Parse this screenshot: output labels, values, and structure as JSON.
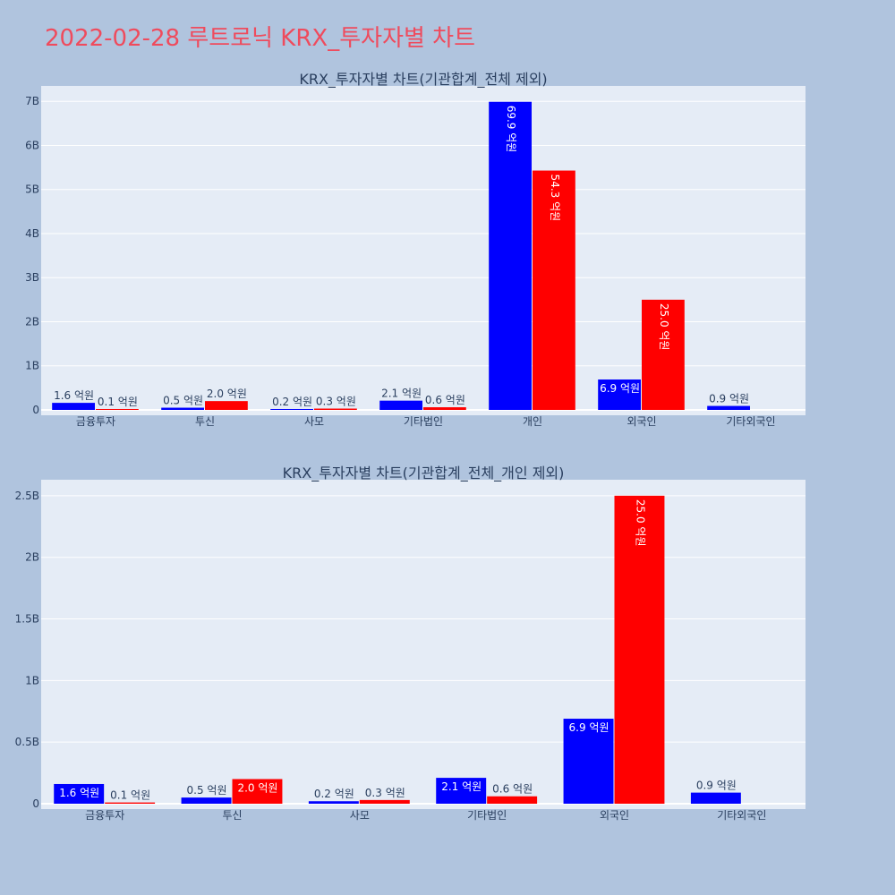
{
  "page": {
    "title": "2022-02-28 루트로닉 KRX_투자자별 차트"
  },
  "colors": {
    "background": "#b0c4de",
    "plot_bg": "#e5ecf6",
    "grid": "#ffffff",
    "title": "#ef4b5d",
    "text": "#2a3f5f",
    "series_a": "#0000ff",
    "series_b": "#ff0000"
  },
  "chart_data": [
    {
      "type": "bar",
      "title": "KRX_투자자별 차트(기관합계_전체 제외)",
      "categories": [
        "금융투자",
        "투신",
        "사모",
        "기타법인",
        "개인",
        "외국인",
        "기타외국인"
      ],
      "series": [
        {
          "color": "#0000ff",
          "values": [
            160000000,
            50000000,
            20000000,
            210000000,
            6990000000,
            690000000,
            90000000
          ],
          "labels": [
            "1.6 억원",
            "0.5 억원",
            "0.2 억원",
            "2.1 억원",
            "69.9 억원",
            "6.9 억원",
            "0.9 억원"
          ]
        },
        {
          "color": "#ff0000",
          "values": [
            10000000,
            200000000,
            30000000,
            60000000,
            5430000000,
            2500000000,
            null
          ],
          "labels": [
            "0.1 억원",
            "2.0 억원",
            "0.3 억원",
            "0.6 억원",
            "54.3 억원",
            "25.0 억원",
            null
          ]
        }
      ],
      "ylim": [
        0,
        7350000000
      ],
      "yticks": [
        0,
        1000000000,
        2000000000,
        3000000000,
        4000000000,
        5000000000,
        6000000000,
        7000000000
      ],
      "ytick_labels": [
        "0",
        "1B",
        "2B",
        "3B",
        "4B",
        "5B",
        "6B",
        "7B"
      ],
      "xlabel": "",
      "ylabel": "",
      "grid": true,
      "legend": "none"
    },
    {
      "type": "bar",
      "title": "KRX_투자자별 차트(기관합계_전체_개인 제외)",
      "categories": [
        "금융투자",
        "투신",
        "사모",
        "기타법인",
        "외국인",
        "기타외국인"
      ],
      "series": [
        {
          "color": "#0000ff",
          "values": [
            160000000,
            50000000,
            20000000,
            210000000,
            690000000,
            90000000
          ],
          "labels": [
            "1.6 억원",
            "0.5 억원",
            "0.2 억원",
            "2.1 억원",
            "6.9 억원",
            "0.9 억원"
          ]
        },
        {
          "color": "#ff0000",
          "values": [
            10000000,
            200000000,
            30000000,
            60000000,
            2500000000,
            null
          ],
          "labels": [
            "0.1 억원",
            "2.0 억원",
            "0.3 억원",
            "0.6 억원",
            "25.0 억원",
            null
          ]
        }
      ],
      "ylim": [
        0,
        2630000000
      ],
      "yticks": [
        0,
        500000000,
        1000000000,
        1500000000,
        2000000000,
        2500000000
      ],
      "ytick_labels": [
        "0",
        "0.5B",
        "1B",
        "1.5B",
        "2B",
        "2.5B"
      ],
      "xlabel": "",
      "ylabel": "",
      "grid": true,
      "legend": "none"
    }
  ]
}
